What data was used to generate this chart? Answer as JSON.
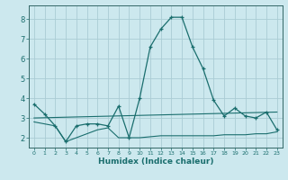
{
  "xlabel": "Humidex (Indice chaleur)",
  "bg_color": "#cce8ee",
  "grid_color": "#aaccd4",
  "line_color": "#1a6e6e",
  "spine_color": "#336666",
  "xlim": [
    -0.5,
    23.5
  ],
  "ylim": [
    1.5,
    8.7
  ],
  "yticks": [
    2,
    3,
    4,
    5,
    6,
    7,
    8
  ],
  "xticks": [
    0,
    1,
    2,
    3,
    4,
    5,
    6,
    7,
    8,
    9,
    10,
    11,
    12,
    13,
    14,
    15,
    16,
    17,
    18,
    19,
    20,
    21,
    22,
    23
  ],
  "series_main": [
    [
      0,
      3.7
    ],
    [
      1,
      3.2
    ],
    [
      2,
      2.6
    ],
    [
      3,
      1.8
    ],
    [
      4,
      2.6
    ],
    [
      5,
      2.7
    ],
    [
      6,
      2.7
    ],
    [
      7,
      2.6
    ],
    [
      8,
      3.6
    ],
    [
      9,
      2.0
    ],
    [
      10,
      4.0
    ],
    [
      11,
      6.6
    ],
    [
      12,
      7.5
    ],
    [
      13,
      8.1
    ],
    [
      14,
      8.1
    ],
    [
      15,
      6.6
    ],
    [
      16,
      5.5
    ],
    [
      17,
      3.9
    ],
    [
      18,
      3.1
    ],
    [
      19,
      3.5
    ],
    [
      20,
      3.1
    ],
    [
      21,
      3.0
    ],
    [
      22,
      3.3
    ],
    [
      23,
      2.4
    ]
  ],
  "series_trend": [
    [
      0,
      3.0
    ],
    [
      23,
      3.3
    ]
  ],
  "series_flat": [
    [
      0,
      2.8
    ],
    [
      1,
      2.7
    ],
    [
      2,
      2.6
    ],
    [
      3,
      1.8
    ],
    [
      4,
      2.0
    ],
    [
      5,
      2.2
    ],
    [
      6,
      2.4
    ],
    [
      7,
      2.5
    ],
    [
      8,
      2.0
    ],
    [
      9,
      2.0
    ],
    [
      10,
      2.0
    ],
    [
      11,
      2.05
    ],
    [
      12,
      2.1
    ],
    [
      13,
      2.1
    ],
    [
      14,
      2.1
    ],
    [
      15,
      2.1
    ],
    [
      16,
      2.1
    ],
    [
      17,
      2.1
    ],
    [
      18,
      2.15
    ],
    [
      19,
      2.15
    ],
    [
      20,
      2.15
    ],
    [
      21,
      2.2
    ],
    [
      22,
      2.2
    ],
    [
      23,
      2.3
    ]
  ]
}
